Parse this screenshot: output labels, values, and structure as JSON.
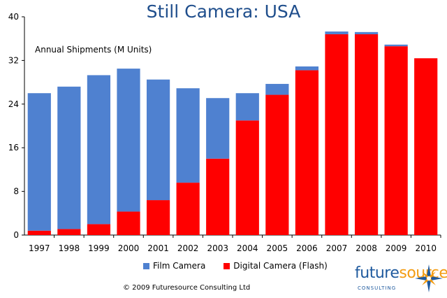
{
  "chart_data": {
    "type": "bar",
    "stacked": true,
    "title": "Still Camera: USA",
    "ylabel": "Annual Shipments (M Units)",
    "xlabel": "",
    "categories": [
      "1997",
      "1998",
      "1999",
      "2000",
      "2001",
      "2002",
      "2003",
      "2004",
      "2005",
      "2006",
      "2007",
      "2008",
      "2009",
      "2010"
    ],
    "series": [
      {
        "name": "Digital Camera (Flash)",
        "color": "#ff0000",
        "values": [
          0.8,
          1.1,
          2.0,
          4.3,
          6.4,
          9.6,
          14.0,
          21.0,
          25.7,
          30.2,
          36.8,
          36.8,
          34.6,
          32.4
        ]
      },
      {
        "name": "Film Camera",
        "color": "#4f81d0",
        "values": [
          25.2,
          26.1,
          27.3,
          26.2,
          22.1,
          17.3,
          11.1,
          5.0,
          2.0,
          0.7,
          0.5,
          0.4,
          0.3,
          0.0
        ]
      }
    ],
    "ylim": [
      0,
      40
    ],
    "yticks": [
      "0",
      "8",
      "16",
      "24",
      "32",
      "40"
    ],
    "grid": false,
    "legend": "bottom"
  },
  "copyright": "© 2009 Futuresource Consulting Ltd",
  "logo": {
    "word_a": "future",
    "word_b": "source",
    "sub": "CONSULTING"
  }
}
